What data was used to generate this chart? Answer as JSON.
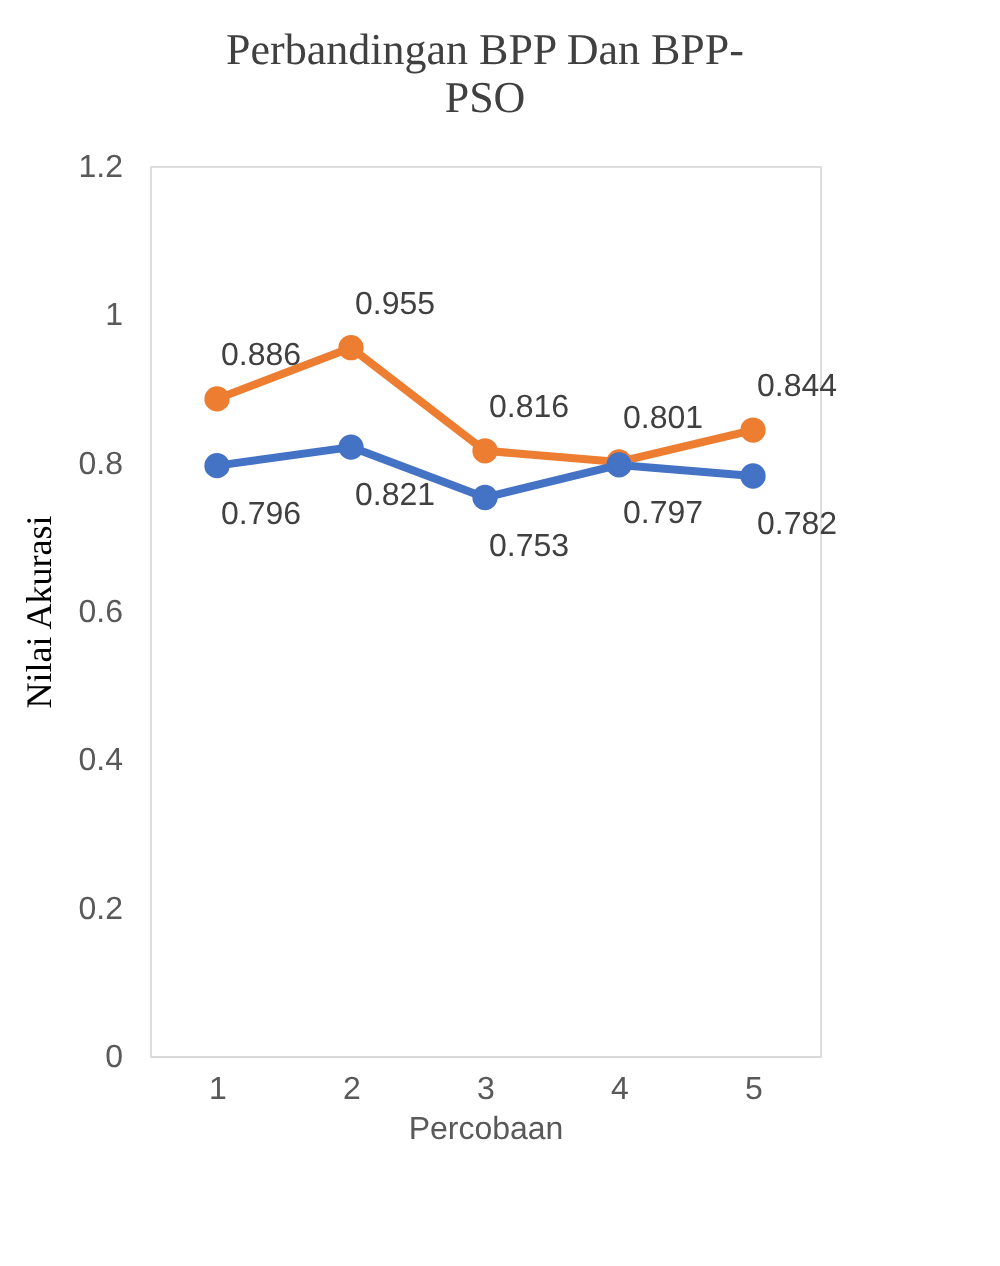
{
  "chart_data": {
    "type": "line",
    "title": [
      "Perbandingan BPP Dan BPP-",
      "PSO"
    ],
    "xlabel": "Percobaan",
    "ylabel": "Nilai Akurasi",
    "categories": [
      "1",
      "2",
      "3",
      "4",
      "5"
    ],
    "series": [
      {
        "color": "#ed7d31",
        "values": [
          0.886,
          0.955,
          0.816,
          0.801,
          0.844
        ]
      },
      {
        "color": "#4472c4",
        "values": [
          0.796,
          0.821,
          0.753,
          0.797,
          0.782
        ]
      }
    ],
    "ylim": [
      0,
      1.2
    ],
    "yticks": [
      0,
      0.2,
      0.4,
      0.6,
      0.8,
      1,
      1.2
    ],
    "grid": false,
    "legend": false,
    "marker": "circle",
    "line_style": "solid",
    "data_labels": true
  }
}
